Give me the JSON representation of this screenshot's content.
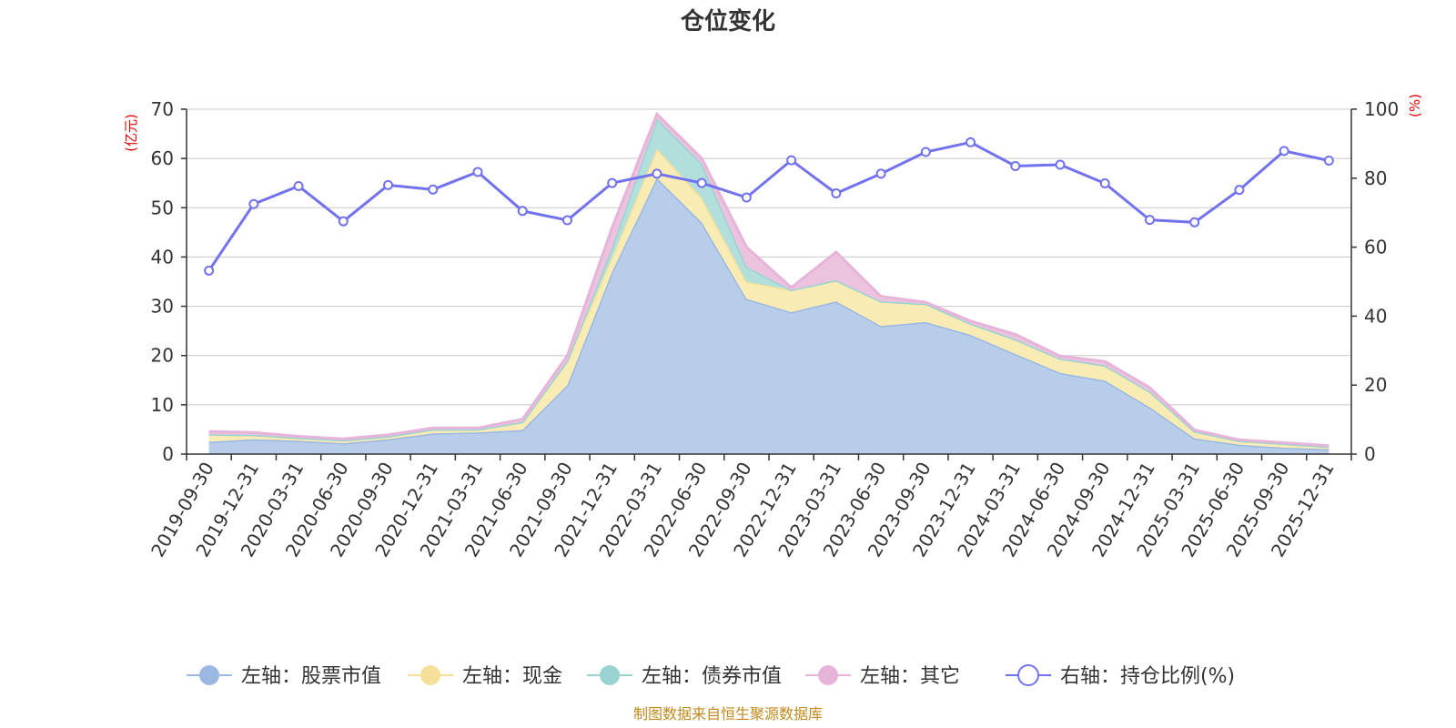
{
  "chart_data": {
    "type": "area",
    "title": "仓位变化",
    "left_axis_unit": "(亿元)",
    "right_axis_unit": "(%)",
    "left_ylim": [
      0,
      70
    ],
    "left_ticks": [
      0,
      10,
      20,
      30,
      40,
      50,
      60,
      70
    ],
    "right_ylim": [
      0,
      100
    ],
    "right_ticks": [
      0,
      20,
      40,
      60,
      80,
      100
    ],
    "categories": [
      "2019-09-30",
      "2019-12-31",
      "2020-03-31",
      "2020-06-30",
      "2020-09-30",
      "2020-12-31",
      "2021-03-31",
      "2021-06-30",
      "2021-09-30",
      "2021-12-31",
      "2022-03-31",
      "2022-06-30",
      "2022-09-30",
      "2022-12-31",
      "2023-03-31",
      "2023-06-30",
      "2023-09-30",
      "2023-12-31",
      "2024-03-31",
      "2024-06-30",
      "2024-09-30",
      "2024-12-31",
      "2025-03-31",
      "2025-06-30",
      "2025-09-30",
      "2025-12-31"
    ],
    "series": [
      {
        "name": "左轴：股票市值",
        "axis": "left",
        "kind": "stacked-area",
        "color": "#9bb8e3",
        "fill": "#b8cdea",
        "values": [
          2.5,
          3.0,
          2.7,
          2.2,
          3.0,
          4.2,
          4.4,
          4.9,
          14.0,
          37.0,
          56.0,
          47.0,
          31.5,
          28.8,
          31.0,
          26.0,
          26.8,
          24.2,
          20.3,
          16.5,
          14.9,
          9.5,
          3.2,
          1.9,
          1.3,
          1.0
        ]
      },
      {
        "name": "左轴：现金",
        "axis": "left",
        "kind": "stacked-area",
        "color": "#f5e09a",
        "fill": "#f8ebb3",
        "values": [
          1.5,
          0.9,
          0.6,
          0.6,
          0.6,
          0.8,
          0.6,
          1.6,
          5.0,
          3.0,
          6.0,
          5.0,
          3.5,
          4.5,
          4.3,
          5.0,
          3.7,
          2.3,
          3.0,
          2.9,
          3.1,
          3.2,
          1.4,
          0.8,
          0.8,
          0.5
        ]
      },
      {
        "name": "左轴：债券市值",
        "axis": "left",
        "kind": "stacked-area",
        "color": "#99d3d2",
        "fill": "#b2dfdc",
        "values": [
          0,
          0,
          0,
          0,
          0,
          0,
          0,
          0,
          0,
          2.0,
          6.0,
          7.0,
          3.0,
          0,
          0,
          0,
          0,
          0,
          0,
          0,
          0,
          0,
          0,
          0,
          0,
          0
        ]
      },
      {
        "name": "左轴：其它",
        "axis": "left",
        "kind": "stacked-area",
        "color": "#e7b4d9",
        "fill": "#ebc3df",
        "values": [
          0.6,
          0.5,
          0.3,
          0.3,
          0.3,
          0.3,
          0.3,
          0.6,
          1.0,
          4.0,
          1.0,
          1.0,
          4.0,
          0.5,
          5.7,
          1.0,
          0.3,
          0.5,
          1.0,
          0.5,
          0.8,
          0.8,
          0.3,
          0.2,
          0.2,
          0.2
        ]
      },
      {
        "name": "右轴：持仓比例(%)",
        "axis": "right",
        "kind": "line",
        "color": "#7272ee",
        "values": [
          53.2,
          72.5,
          77.7,
          67.5,
          78.0,
          76.7,
          81.8,
          70.5,
          67.8,
          78.6,
          81.3,
          78.6,
          74.4,
          85.2,
          75.6,
          81.3,
          87.6,
          90.4,
          83.5,
          83.9,
          78.5,
          67.9,
          67.2,
          76.6,
          87.9,
          85.1
        ]
      }
    ],
    "legend_position": "bottom",
    "grid": true
  },
  "source_text": "制图数据来自恒生聚源数据库"
}
